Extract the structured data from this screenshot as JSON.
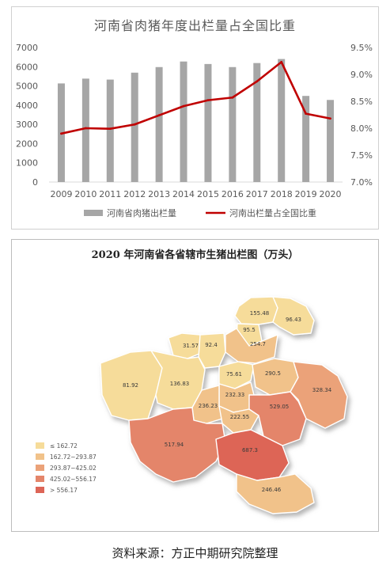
{
  "chart_data": [
    {
      "type": "bar+line",
      "title": "河南省肉猪年度出栏量占全国比重",
      "categories": [
        "2009",
        "2010",
        "2011",
        "2012",
        "2013",
        "2014",
        "2015",
        "2016",
        "2017",
        "2018",
        "2019",
        "2020"
      ],
      "series": [
        {
          "name": "河南省肉猪出栏量",
          "type": "bar",
          "axis": "left",
          "color": "#a6a6a6",
          "values": [
            5130,
            5380,
            5330,
            5690,
            5980,
            6270,
            6140,
            5980,
            6190,
            6400,
            4480,
            4270
          ]
        },
        {
          "name": "河南出栏量占全国比重",
          "type": "line",
          "axis": "right",
          "color": "#c00000",
          "values": [
            7.9,
            8.0,
            7.99,
            8.07,
            8.24,
            8.41,
            8.52,
            8.57,
            8.87,
            9.23,
            8.27,
            8.18
          ]
        }
      ],
      "y_left": {
        "min": 0,
        "max": 7000,
        "ticks": [
          "0",
          "1000",
          "2000",
          "3000",
          "4000",
          "5000",
          "6000",
          "7000"
        ]
      },
      "y_right": {
        "min": 7.0,
        "max": 9.5,
        "ticks": [
          "7.0%",
          "7.5%",
          "8.0%",
          "8.5%",
          "9.0%",
          "9.5%"
        ]
      },
      "legend_position": "bottom",
      "grid": false
    },
    {
      "type": "choropleth-map",
      "title": "2020 年河南省各省辖市生猪出栏图（万头）",
      "regions": [
        {
          "value": "155.48",
          "bin": 0
        },
        {
          "value": "95.5",
          "bin": 0
        },
        {
          "value": "96.43",
          "bin": 0
        },
        {
          "value": "254.7",
          "bin": 1
        },
        {
          "value": "31.57",
          "bin": 0
        },
        {
          "value": "92.4",
          "bin": 0
        },
        {
          "value": "75.61",
          "bin": 0
        },
        {
          "value": "290.5",
          "bin": 1
        },
        {
          "value": "81.92",
          "bin": 0
        },
        {
          "value": "136.83",
          "bin": 0
        },
        {
          "value": "232.33",
          "bin": 1
        },
        {
          "value": "328.34",
          "bin": 2
        },
        {
          "value": "236.23",
          "bin": 1
        },
        {
          "value": "222.55",
          "bin": 1
        },
        {
          "value": "529.05",
          "bin": 3
        },
        {
          "value": "517.94",
          "bin": 3
        },
        {
          "value": "687.3",
          "bin": 4
        },
        {
          "value": "246.46",
          "bin": 1
        }
      ],
      "legend": [
        {
          "label": "≤ 162.72",
          "color": "#f6dc9a"
        },
        {
          "label": "162.72~293.87",
          "color": "#f1c28a"
        },
        {
          "label": "293.87~425.02",
          "color": "#eba279"
        },
        {
          "label": "425.02~556.17",
          "color": "#e4856a"
        },
        {
          "label": "> 556.17",
          "color": "#dd6557"
        }
      ]
    }
  ],
  "source": "资料来源：方正中期研究院整理"
}
